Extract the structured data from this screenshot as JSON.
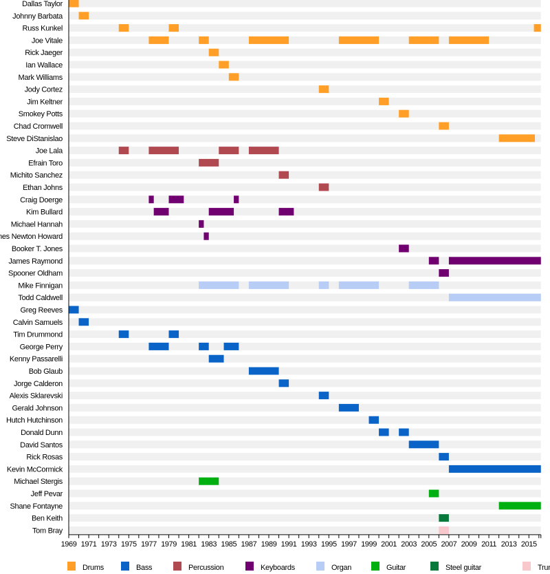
{
  "chart_data": {
    "type": "timeline",
    "title": "",
    "xlim": [
      1969,
      2016.2
    ],
    "x_ticks": [
      1969,
      1971,
      1973,
      1975,
      1977,
      1979,
      1981,
      1983,
      1985,
      1987,
      1989,
      1991,
      1993,
      1995,
      1997,
      1999,
      2001,
      2003,
      2005,
      2007,
      2009,
      2011,
      2013,
      2015
    ],
    "grid": false,
    "legend_position": "bottom",
    "roles": [
      {
        "name": "Drums",
        "color": "#ff9f27"
      },
      {
        "name": "Bass",
        "color": "#0a64c8"
      },
      {
        "name": "Percussion",
        "color": "#b04a50"
      },
      {
        "name": "Keyboards",
        "color": "#700070"
      },
      {
        "name": "Organ",
        "color": "#b8cdf5"
      },
      {
        "name": "Guitar",
        "color": "#00b010"
      },
      {
        "name": "Steel guitar",
        "color": "#077a3c"
      },
      {
        "name": "Trumpet",
        "color": "#f8c8cc"
      }
    ],
    "members": [
      {
        "name": "Dallas Taylor",
        "periods": [
          [
            "Drums",
            1969,
            1970
          ]
        ]
      },
      {
        "name": "Johnny Barbata",
        "periods": [
          [
            "Drums",
            1970,
            1971
          ]
        ]
      },
      {
        "name": "Russ Kunkel",
        "periods": [
          [
            "Drums",
            1974,
            1975
          ],
          [
            "Drums",
            1979,
            1980
          ],
          [
            "Drums",
            2015.5,
            2016.2
          ]
        ]
      },
      {
        "name": "Joe Vitale",
        "periods": [
          [
            "Drums",
            1977,
            1979
          ],
          [
            "Drums",
            1982,
            1983
          ],
          [
            "Drums",
            1987,
            1991
          ],
          [
            "Drums",
            1996,
            2000
          ],
          [
            "Drums",
            2003,
            2006
          ],
          [
            "Drums",
            2007,
            2011
          ]
        ]
      },
      {
        "name": "Rick Jaeger",
        "periods": [
          [
            "Drums",
            1983,
            1984
          ]
        ]
      },
      {
        "name": "Ian Wallace",
        "periods": [
          [
            "Drums",
            1984,
            1985
          ]
        ]
      },
      {
        "name": "Mark Williams",
        "periods": [
          [
            "Drums",
            1985,
            1986
          ]
        ]
      },
      {
        "name": "Jody Cortez",
        "periods": [
          [
            "Drums",
            1994,
            1995
          ]
        ]
      },
      {
        "name": "Jim Keltner",
        "periods": [
          [
            "Drums",
            2000,
            2001
          ]
        ]
      },
      {
        "name": "Smokey Potts",
        "periods": [
          [
            "Drums",
            2002,
            2003
          ]
        ]
      },
      {
        "name": "Chad Cromwell",
        "periods": [
          [
            "Drums",
            2006,
            2007
          ]
        ]
      },
      {
        "name": "Steve DiStanislao",
        "periods": [
          [
            "Drums",
            2012,
            2015.6
          ]
        ]
      },
      {
        "name": "Joe Lala",
        "periods": [
          [
            "Percussion",
            1974,
            1975
          ],
          [
            "Percussion",
            1977,
            1980
          ],
          [
            "Percussion",
            1984,
            1986
          ],
          [
            "Percussion",
            1987,
            1990
          ]
        ]
      },
      {
        "name": "Efrain Toro",
        "periods": [
          [
            "Percussion",
            1982,
            1984
          ]
        ]
      },
      {
        "name": "Michito Sanchez",
        "periods": [
          [
            "Percussion",
            1990,
            1991
          ]
        ]
      },
      {
        "name": "Ethan Johns",
        "periods": [
          [
            "Percussion",
            1994,
            1995
          ]
        ]
      },
      {
        "name": "Craig Doerge",
        "periods": [
          [
            "Keyboards",
            1977,
            1977.5
          ],
          [
            "Keyboards",
            1979,
            1980.5
          ],
          [
            "Keyboards",
            1985.5,
            1986
          ]
        ]
      },
      {
        "name": "Kim Bullard",
        "periods": [
          [
            "Keyboards",
            1977.5,
            1979
          ],
          [
            "Keyboards",
            1983,
            1985.5
          ],
          [
            "Keyboards",
            1990,
            1991.5
          ]
        ]
      },
      {
        "name": "Michael Hannah",
        "periods": [
          [
            "Keyboards",
            1982,
            1982.5
          ]
        ]
      },
      {
        "name": "James Newton Howard",
        "periods": [
          [
            "Keyboards",
            1982.5,
            1983
          ]
        ]
      },
      {
        "name": "Booker T. Jones",
        "periods": [
          [
            "Keyboards",
            2002,
            2003
          ]
        ]
      },
      {
        "name": "James Raymond",
        "periods": [
          [
            "Keyboards",
            2005,
            2006
          ],
          [
            "Keyboards",
            2007,
            2016.2
          ]
        ]
      },
      {
        "name": "Spooner Oldham",
        "periods": [
          [
            "Keyboards",
            2006,
            2007
          ]
        ]
      },
      {
        "name": "Mike Finnigan",
        "periods": [
          [
            "Organ",
            1982,
            1986
          ],
          [
            "Organ",
            1987,
            1991
          ],
          [
            "Organ",
            1994,
            1995
          ],
          [
            "Organ",
            1996,
            2000
          ],
          [
            "Organ",
            2003,
            2006
          ]
        ]
      },
      {
        "name": "Todd Caldwell",
        "periods": [
          [
            "Organ",
            2007,
            2016.2
          ]
        ]
      },
      {
        "name": "Greg Reeves",
        "periods": [
          [
            "Bass",
            1969,
            1970
          ]
        ]
      },
      {
        "name": "Calvin Samuels",
        "periods": [
          [
            "Bass",
            1970,
            1971
          ]
        ]
      },
      {
        "name": "Tim Drummond",
        "periods": [
          [
            "Bass",
            1974,
            1975
          ],
          [
            "Bass",
            1979,
            1980
          ]
        ]
      },
      {
        "name": "George Perry",
        "periods": [
          [
            "Bass",
            1977,
            1979
          ],
          [
            "Bass",
            1982,
            1983
          ],
          [
            "Bass",
            1984.5,
            1986
          ]
        ]
      },
      {
        "name": "Kenny Passarelli",
        "periods": [
          [
            "Bass",
            1983,
            1984.5
          ]
        ]
      },
      {
        "name": "Bob Glaub",
        "periods": [
          [
            "Bass",
            1987,
            1990
          ]
        ]
      },
      {
        "name": "Jorge Calderon",
        "periods": [
          [
            "Bass",
            1990,
            1991
          ]
        ]
      },
      {
        "name": "Alexis Sklarevski",
        "periods": [
          [
            "Bass",
            1994,
            1995
          ]
        ]
      },
      {
        "name": "Gerald Johnson",
        "periods": [
          [
            "Bass",
            1996,
            1998
          ]
        ]
      },
      {
        "name": "Hutch Hutchinson",
        "periods": [
          [
            "Bass",
            1999,
            2000
          ]
        ]
      },
      {
        "name": "Donald Dunn",
        "periods": [
          [
            "Bass",
            2000,
            2001
          ],
          [
            "Bass",
            2002,
            2003
          ]
        ]
      },
      {
        "name": "David Santos",
        "periods": [
          [
            "Bass",
            2003,
            2006
          ]
        ]
      },
      {
        "name": "Rick Rosas",
        "periods": [
          [
            "Bass",
            2006,
            2007
          ]
        ]
      },
      {
        "name": "Kevin McCormick",
        "periods": [
          [
            "Bass",
            2007,
            2016.2
          ]
        ]
      },
      {
        "name": "Michael Stergis",
        "periods": [
          [
            "Guitar",
            1982,
            1984
          ]
        ]
      },
      {
        "name": "Jeff Pevar",
        "periods": [
          [
            "Guitar",
            2005,
            2006
          ]
        ]
      },
      {
        "name": "Shane Fontayne",
        "periods": [
          [
            "Guitar",
            2012,
            2016.2
          ]
        ]
      },
      {
        "name": "Ben Keith",
        "periods": [
          [
            "Steel guitar",
            2006,
            2007
          ]
        ]
      },
      {
        "name": "Tom Bray",
        "periods": [
          [
            "Trumpet",
            2006,
            2007
          ]
        ]
      }
    ]
  }
}
